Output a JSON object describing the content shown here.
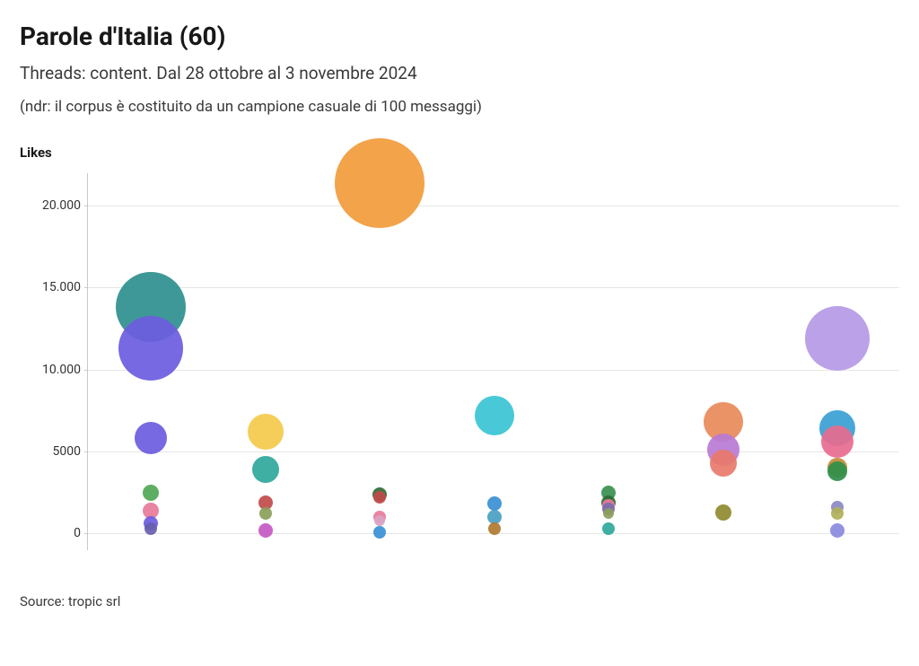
{
  "title": "Parole d'Italia (60)",
  "subtitle": "Threads: content. Dal 28 ottobre al 3 novembre 2024",
  "note": "(ndr: il corpus è costituito da un campione casuale di 100 messaggi)",
  "source": "Source: tropic srl",
  "chart": {
    "type": "bubble",
    "ylabel": "Likes",
    "ylim_min": -1000,
    "ylim_max": 22000,
    "yticks": [
      0,
      5000,
      10000,
      15000,
      20000
    ],
    "ytick_labels": [
      "0",
      "5000",
      "10.000",
      "15.000",
      "20.000"
    ],
    "background_color": "#ffffff",
    "grid_color": "#e6e6e6",
    "axis_color": "#c9c9c9",
    "tick_font_size": 14,
    "tick_color": "#333333",
    "x_columns": 7,
    "bubble_opacity": 0.92,
    "bubbles": [
      {
        "col": 0,
        "y": 13800,
        "size": 78,
        "color": "#2f8f8f"
      },
      {
        "col": 0,
        "y": 11300,
        "size": 72,
        "color": "#6b5ce0"
      },
      {
        "col": 0,
        "y": 5800,
        "size": 36,
        "color": "#6b5ce0"
      },
      {
        "col": 0,
        "y": 2500,
        "size": 18,
        "color": "#4fa755"
      },
      {
        "col": 0,
        "y": 1400,
        "size": 18,
        "color": "#e87a9b"
      },
      {
        "col": 0,
        "y": 600,
        "size": 16,
        "color": "#6b5ce0"
      },
      {
        "col": 0,
        "y": 300,
        "size": 14,
        "color": "#685fb0"
      },
      {
        "col": 1,
        "y": 6200,
        "size": 40,
        "color": "#f4c94b"
      },
      {
        "col": 1,
        "y": 3900,
        "size": 30,
        "color": "#2fa79b"
      },
      {
        "col": 1,
        "y": 1900,
        "size": 16,
        "color": "#c14a4a"
      },
      {
        "col": 1,
        "y": 1200,
        "size": 14,
        "color": "#8ba05a"
      },
      {
        "col": 1,
        "y": 200,
        "size": 16,
        "color": "#c458c4"
      },
      {
        "col": 2,
        "y": 21400,
        "size": 100,
        "color": "#f29b3a"
      },
      {
        "col": 2,
        "y": 2400,
        "size": 16,
        "color": "#2e6b34"
      },
      {
        "col": 2,
        "y": 2200,
        "size": 14,
        "color": "#c14a4a"
      },
      {
        "col": 2,
        "y": 1000,
        "size": 14,
        "color": "#e87a9b"
      },
      {
        "col": 2,
        "y": 800,
        "size": 12,
        "color": "#d9a3c4"
      },
      {
        "col": 2,
        "y": 100,
        "size": 14,
        "color": "#3a8fd4"
      },
      {
        "col": 3,
        "y": 7200,
        "size": 44,
        "color": "#3ac4d4"
      },
      {
        "col": 3,
        "y": 1800,
        "size": 16,
        "color": "#3a8fd4"
      },
      {
        "col": 3,
        "y": 1000,
        "size": 16,
        "color": "#4aa0c4"
      },
      {
        "col": 3,
        "y": 300,
        "size": 14,
        "color": "#b07a2e"
      },
      {
        "col": 4,
        "y": 2500,
        "size": 16,
        "color": "#3a9050"
      },
      {
        "col": 4,
        "y": 1900,
        "size": 16,
        "color": "#2e6b34"
      },
      {
        "col": 4,
        "y": 1700,
        "size": 14,
        "color": "#e87a9b"
      },
      {
        "col": 4,
        "y": 1500,
        "size": 14,
        "color": "#7a6bb0"
      },
      {
        "col": 4,
        "y": 1200,
        "size": 12,
        "color": "#8ba05a"
      },
      {
        "col": 4,
        "y": 300,
        "size": 14,
        "color": "#2fa79b"
      },
      {
        "col": 5,
        "y": 6800,
        "size": 44,
        "color": "#e88a5a"
      },
      {
        "col": 5,
        "y": 5100,
        "size": 36,
        "color": "#b87ad4"
      },
      {
        "col": 5,
        "y": 4300,
        "size": 30,
        "color": "#e87a6b"
      },
      {
        "col": 5,
        "y": 1300,
        "size": 18,
        "color": "#8f8a2e"
      },
      {
        "col": 6,
        "y": 11900,
        "size": 72,
        "color": "#b59ae6"
      },
      {
        "col": 6,
        "y": 6400,
        "size": 40,
        "color": "#3aa0d4"
      },
      {
        "col": 6,
        "y": 5600,
        "size": 36,
        "color": "#e86b8f"
      },
      {
        "col": 6,
        "y": 4000,
        "size": 22,
        "color": "#c48a3a"
      },
      {
        "col": 6,
        "y": 3800,
        "size": 22,
        "color": "#2e8f4a"
      },
      {
        "col": 6,
        "y": 1600,
        "size": 14,
        "color": "#8a8ac4"
      },
      {
        "col": 6,
        "y": 1200,
        "size": 14,
        "color": "#b0b05a"
      },
      {
        "col": 6,
        "y": 200,
        "size": 16,
        "color": "#8a8ae0"
      }
    ]
  }
}
